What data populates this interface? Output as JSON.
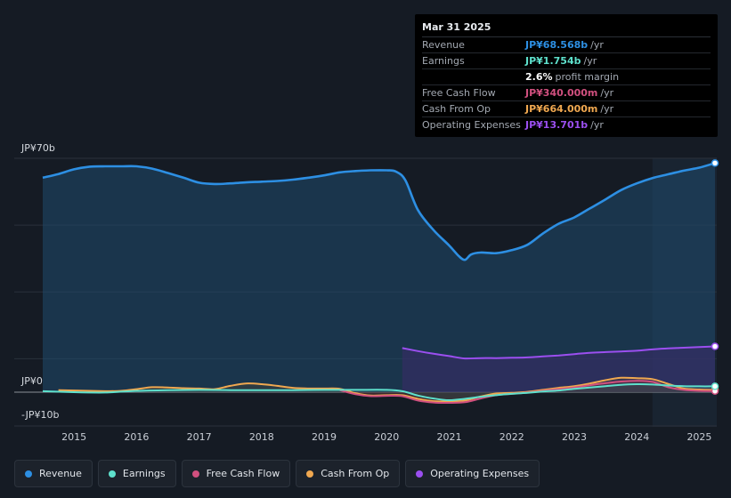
{
  "chart_data": {
    "type": "line",
    "y_unit": "JP¥ billions",
    "y_axis_labels": [
      "JP¥70b",
      "JP¥0",
      "-JP¥10b"
    ],
    "ylim": [
      -10,
      70
    ],
    "xlim": [
      2014.5,
      2025.25
    ],
    "x_ticks": [
      "2015",
      "2016",
      "2017",
      "2018",
      "2019",
      "2020",
      "2021",
      "2022",
      "2023",
      "2024",
      "2025"
    ],
    "forecast_shade_start": 2024.25,
    "series": [
      {
        "name": "Revenue",
        "color": "#2d8fe3",
        "points": [
          [
            2014.5,
            64.2
          ],
          [
            2014.75,
            65.3
          ],
          [
            2015.0,
            66.7
          ],
          [
            2015.25,
            67.5
          ],
          [
            2015.5,
            67.6
          ],
          [
            2015.75,
            67.6
          ],
          [
            2016.0,
            67.6
          ],
          [
            2016.25,
            66.9
          ],
          [
            2016.5,
            65.6
          ],
          [
            2016.75,
            64.2
          ],
          [
            2017.0,
            62.7
          ],
          [
            2017.25,
            62.3
          ],
          [
            2017.5,
            62.5
          ],
          [
            2017.75,
            62.8
          ],
          [
            2018.0,
            63.0
          ],
          [
            2018.25,
            63.2
          ],
          [
            2018.5,
            63.6
          ],
          [
            2018.75,
            64.2
          ],
          [
            2019.0,
            64.9
          ],
          [
            2019.25,
            65.8
          ],
          [
            2019.5,
            66.2
          ],
          [
            2019.75,
            66.4
          ],
          [
            2020.0,
            66.4
          ],
          [
            2020.15,
            66.0
          ],
          [
            2020.3,
            63.4
          ],
          [
            2020.5,
            54.5
          ],
          [
            2020.75,
            48.5
          ],
          [
            2021.0,
            43.9
          ],
          [
            2021.15,
            40.8
          ],
          [
            2021.25,
            39.6
          ],
          [
            2021.35,
            41.2
          ],
          [
            2021.5,
            41.8
          ],
          [
            2021.75,
            41.6
          ],
          [
            2022.0,
            42.5
          ],
          [
            2022.25,
            44.1
          ],
          [
            2022.5,
            47.5
          ],
          [
            2022.75,
            50.4
          ],
          [
            2023.0,
            52.3
          ],
          [
            2023.25,
            55.0
          ],
          [
            2023.5,
            57.7
          ],
          [
            2023.75,
            60.5
          ],
          [
            2024.0,
            62.5
          ],
          [
            2024.25,
            64.1
          ],
          [
            2024.5,
            65.2
          ],
          [
            2024.75,
            66.3
          ],
          [
            2025.0,
            67.2
          ],
          [
            2025.25,
            68.568
          ]
        ]
      },
      {
        "name": "Earnings",
        "color": "#5ee0cc",
        "points": [
          [
            2014.5,
            0.3
          ],
          [
            2015.0,
            0.0
          ],
          [
            2015.5,
            -0.1
          ],
          [
            2016.0,
            0.4
          ],
          [
            2016.5,
            0.6
          ],
          [
            2017.0,
            0.7
          ],
          [
            2017.5,
            0.6
          ],
          [
            2018.0,
            0.6
          ],
          [
            2018.5,
            0.6
          ],
          [
            2019.0,
            0.7
          ],
          [
            2019.5,
            0.7
          ],
          [
            2020.0,
            0.7
          ],
          [
            2020.25,
            0.3
          ],
          [
            2020.5,
            -1.0
          ],
          [
            2020.75,
            -1.9
          ],
          [
            2021.0,
            -2.4
          ],
          [
            2021.25,
            -2.0
          ],
          [
            2021.5,
            -1.4
          ],
          [
            2021.75,
            -0.9
          ],
          [
            2022.0,
            -0.5
          ],
          [
            2022.25,
            -0.2
          ],
          [
            2022.5,
            0.2
          ],
          [
            2022.75,
            0.5
          ],
          [
            2023.0,
            1.0
          ],
          [
            2023.25,
            1.4
          ],
          [
            2023.5,
            1.8
          ],
          [
            2023.75,
            2.2
          ],
          [
            2024.0,
            2.4
          ],
          [
            2024.25,
            2.3
          ],
          [
            2024.5,
            2.0
          ],
          [
            2024.75,
            1.8
          ],
          [
            2025.0,
            1.75
          ],
          [
            2025.25,
            1.754
          ]
        ]
      },
      {
        "name": "Free Cash Flow",
        "color": "#d1507f",
        "points": [
          [
            2019.25,
            0.6
          ],
          [
            2019.5,
            -0.6
          ],
          [
            2019.75,
            -1.2
          ],
          [
            2020.0,
            -1.1
          ],
          [
            2020.25,
            -1.2
          ],
          [
            2020.5,
            -2.5
          ],
          [
            2020.75,
            -3.1
          ],
          [
            2021.0,
            -3.2
          ],
          [
            2021.25,
            -3.0
          ],
          [
            2021.5,
            -1.9
          ],
          [
            2021.75,
            -0.9
          ],
          [
            2022.0,
            -0.5
          ],
          [
            2022.25,
            -0.1
          ],
          [
            2022.5,
            0.4
          ],
          [
            2022.75,
            0.9
          ],
          [
            2023.0,
            1.4
          ],
          [
            2023.25,
            2.1
          ],
          [
            2023.5,
            2.7
          ],
          [
            2023.75,
            3.2
          ],
          [
            2024.0,
            3.4
          ],
          [
            2024.25,
            3.1
          ],
          [
            2024.5,
            1.5
          ],
          [
            2024.75,
            0.7
          ],
          [
            2025.0,
            0.4
          ],
          [
            2025.25,
            0.34
          ]
        ]
      },
      {
        "name": "Cash From Op",
        "color": "#f0a850",
        "points": [
          [
            2014.75,
            0.6
          ],
          [
            2015.0,
            0.5
          ],
          [
            2015.5,
            0.3
          ],
          [
            2015.75,
            0.4
          ],
          [
            2016.0,
            0.9
          ],
          [
            2016.25,
            1.5
          ],
          [
            2016.5,
            1.4
          ],
          [
            2016.75,
            1.2
          ],
          [
            2017.0,
            1.1
          ],
          [
            2017.25,
            0.9
          ],
          [
            2017.5,
            1.9
          ],
          [
            2017.75,
            2.6
          ],
          [
            2018.0,
            2.4
          ],
          [
            2018.25,
            1.9
          ],
          [
            2018.5,
            1.3
          ],
          [
            2018.75,
            1.1
          ],
          [
            2019.0,
            1.1
          ],
          [
            2019.25,
            1.0
          ],
          [
            2019.5,
            -0.3
          ],
          [
            2019.75,
            -1.0
          ],
          [
            2020.0,
            -0.9
          ],
          [
            2020.25,
            -0.9
          ],
          [
            2020.5,
            -2.0
          ],
          [
            2020.75,
            -2.7
          ],
          [
            2021.0,
            -2.7
          ],
          [
            2021.25,
            -2.5
          ],
          [
            2021.5,
            -1.3
          ],
          [
            2021.75,
            -0.4
          ],
          [
            2022.0,
            -0.2
          ],
          [
            2022.25,
            0.1
          ],
          [
            2022.5,
            0.7
          ],
          [
            2022.75,
            1.3
          ],
          [
            2023.0,
            1.8
          ],
          [
            2023.25,
            2.6
          ],
          [
            2023.5,
            3.6
          ],
          [
            2023.75,
            4.3
          ],
          [
            2024.0,
            4.2
          ],
          [
            2024.25,
            3.9
          ],
          [
            2024.5,
            2.5
          ],
          [
            2024.75,
            1.1
          ],
          [
            2025.0,
            0.8
          ],
          [
            2025.25,
            0.664
          ]
        ]
      },
      {
        "name": "Operating Expenses",
        "color": "#9b4ff0",
        "points": [
          [
            2020.25,
            13.2
          ],
          [
            2020.5,
            12.3
          ],
          [
            2020.75,
            11.5
          ],
          [
            2021.0,
            10.8
          ],
          [
            2021.25,
            10.1
          ],
          [
            2021.5,
            10.2
          ],
          [
            2021.75,
            10.2
          ],
          [
            2022.0,
            10.3
          ],
          [
            2022.25,
            10.4
          ],
          [
            2022.5,
            10.7
          ],
          [
            2022.75,
            11.0
          ],
          [
            2023.0,
            11.4
          ],
          [
            2023.25,
            11.8
          ],
          [
            2023.5,
            12.0
          ],
          [
            2023.75,
            12.2
          ],
          [
            2024.0,
            12.4
          ],
          [
            2024.25,
            12.8
          ],
          [
            2024.5,
            13.1
          ],
          [
            2024.75,
            13.3
          ],
          [
            2025.0,
            13.5
          ],
          [
            2025.25,
            13.701
          ]
        ]
      }
    ]
  },
  "tooltip": {
    "date": "Mar 31 2025",
    "rows": [
      {
        "label": "Revenue",
        "value": "JP¥68.568b",
        "unit": "/yr",
        "color": "#2d8fe3"
      },
      {
        "label": "Earnings",
        "value": "JP¥1.754b",
        "unit": "/yr",
        "color": "#5ee0cc"
      },
      {
        "label": "",
        "value": "2.6%",
        "unit": "profit margin",
        "color": "#ffffff"
      },
      {
        "label": "Free Cash Flow",
        "value": "JP¥340.000m",
        "unit": "/yr",
        "color": "#d1507f"
      },
      {
        "label": "Cash From Op",
        "value": "JP¥664.000m",
        "unit": "/yr",
        "color": "#f0a850"
      },
      {
        "label": "Operating Expenses",
        "value": "JP¥13.701b",
        "unit": "/yr",
        "color": "#9b4ff0"
      }
    ]
  },
  "legend": [
    {
      "label": "Revenue",
      "color": "#2d8fe3"
    },
    {
      "label": "Earnings",
      "color": "#5ee0cc"
    },
    {
      "label": "Free Cash Flow",
      "color": "#d1507f"
    },
    {
      "label": "Cash From Op",
      "color": "#f0a850"
    },
    {
      "label": "Operating Expenses",
      "color": "#9b4ff0"
    }
  ]
}
